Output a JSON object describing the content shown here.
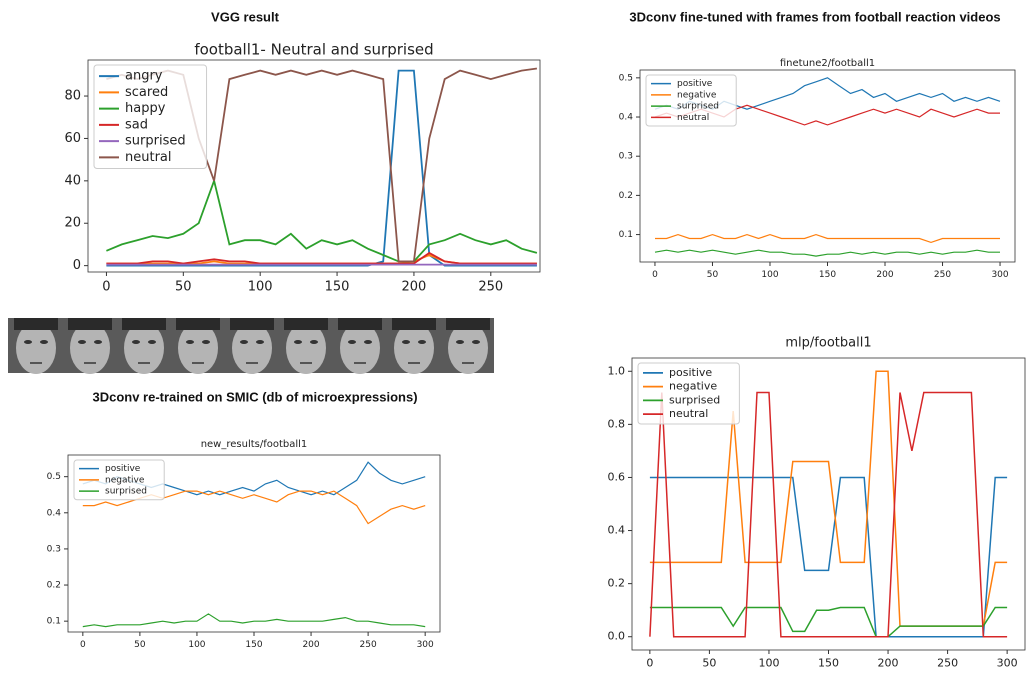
{
  "headings": [
    "VGG result",
    "3Dconv fine-tuned with frames from football reaction videos",
    "3Dconv re-trained on SMIC (db of microexpressions)"
  ],
  "chart_data": [
    {
      "type": "line",
      "title": "football1- Neutral and surprised",
      "x": [
        0,
        10,
        20,
        30,
        40,
        50,
        60,
        70,
        80,
        90,
        100,
        110,
        120,
        130,
        140,
        150,
        160,
        170,
        180,
        190,
        200,
        210,
        220,
        230,
        240,
        250,
        260,
        270,
        280
      ],
      "xlim": [
        -12,
        282
      ],
      "xticks": [
        0,
        50,
        100,
        150,
        200,
        250
      ],
      "ylim": [
        -3,
        97
      ],
      "yticks": [
        0,
        20,
        40,
        60,
        80
      ],
      "legend": "upper left",
      "series": [
        {
          "name": "angry",
          "color": "#1f77b4",
          "values": [
            0,
            0,
            0,
            0,
            0,
            0,
            0,
            0,
            0,
            0,
            0,
            0,
            0,
            0,
            0,
            0,
            0,
            0,
            2,
            92,
            92,
            5,
            0,
            0,
            0,
            0,
            0,
            0,
            0
          ]
        },
        {
          "name": "scared",
          "color": "#ff7f0e",
          "values": [
            1,
            1,
            1,
            1,
            1,
            1,
            1,
            2,
            1,
            1,
            1,
            1,
            1,
            1,
            1,
            1,
            1,
            1,
            1,
            1,
            2,
            5,
            2,
            1,
            1,
            1,
            1,
            1,
            1
          ]
        },
        {
          "name": "happy",
          "color": "#2ca02c",
          "values": [
            7,
            10,
            12,
            14,
            13,
            15,
            20,
            40,
            10,
            12,
            12,
            10,
            15,
            8,
            12,
            10,
            12,
            8,
            5,
            2,
            2,
            10,
            12,
            15,
            12,
            10,
            12,
            8,
            6
          ]
        },
        {
          "name": "sad",
          "color": "#d62728",
          "values": [
            1,
            1,
            1,
            2,
            2,
            1,
            2,
            3,
            2,
            2,
            1,
            1,
            1,
            1,
            1,
            1,
            1,
            1,
            1,
            1,
            1,
            6,
            2,
            1,
            1,
            1,
            1,
            1,
            1
          ]
        },
        {
          "name": "surprised",
          "color": "#9467bd",
          "values": [
            0.5,
            0.5,
            0.5,
            0.5,
            0.5,
            0.5,
            0.5,
            0.5,
            0.5,
            0.5,
            0.5,
            0.5,
            0.5,
            0.5,
            0.5,
            0.5,
            0.5,
            0.5,
            0.5,
            0.5,
            0.5,
            0.5,
            0.5,
            0.5,
            0.5,
            0.5,
            0.5,
            0.5,
            0.5
          ]
        },
        {
          "name": "neutral",
          "color": "#8c564b",
          "values": [
            88,
            90,
            88,
            90,
            92,
            90,
            60,
            40,
            88,
            90,
            92,
            90,
            92,
            90,
            92,
            90,
            92,
            90,
            88,
            2,
            2,
            60,
            88,
            92,
            90,
            88,
            90,
            92,
            93
          ]
        }
      ]
    },
    {
      "type": "line",
      "title": "finetune2/football1",
      "x": [
        0,
        10,
        20,
        30,
        40,
        50,
        60,
        70,
        80,
        90,
        100,
        110,
        120,
        130,
        140,
        150,
        160,
        170,
        180,
        190,
        200,
        210,
        220,
        230,
        240,
        250,
        260,
        270,
        280,
        290,
        300
      ],
      "xlim": [
        -13,
        313
      ],
      "xticks": [
        0,
        50,
        100,
        150,
        200,
        250,
        300
      ],
      "ylim": [
        0.03,
        0.52
      ],
      "yticks": [
        0.1,
        0.2,
        0.3,
        0.4,
        0.5
      ],
      "legend": "upper left",
      "series": [
        {
          "name": "positive",
          "color": "#1f77b4",
          "values": [
            0.42,
            0.43,
            0.42,
            0.44,
            0.43,
            0.42,
            0.44,
            0.43,
            0.42,
            0.43,
            0.44,
            0.45,
            0.46,
            0.48,
            0.49,
            0.5,
            0.48,
            0.46,
            0.47,
            0.45,
            0.46,
            0.44,
            0.45,
            0.46,
            0.45,
            0.46,
            0.44,
            0.45,
            0.44,
            0.45,
            0.44
          ]
        },
        {
          "name": "negative",
          "color": "#ff7f0e",
          "values": [
            0.09,
            0.09,
            0.1,
            0.09,
            0.09,
            0.1,
            0.09,
            0.09,
            0.1,
            0.09,
            0.1,
            0.09,
            0.09,
            0.09,
            0.1,
            0.09,
            0.09,
            0.09,
            0.09,
            0.09,
            0.09,
            0.09,
            0.09,
            0.09,
            0.08,
            0.09,
            0.09,
            0.09,
            0.09,
            0.09,
            0.09
          ]
        },
        {
          "name": "surprised",
          "color": "#2ca02c",
          "values": [
            0.055,
            0.06,
            0.055,
            0.06,
            0.055,
            0.06,
            0.055,
            0.05,
            0.055,
            0.06,
            0.055,
            0.055,
            0.05,
            0.05,
            0.045,
            0.05,
            0.05,
            0.055,
            0.05,
            0.055,
            0.05,
            0.055,
            0.055,
            0.05,
            0.055,
            0.05,
            0.055,
            0.055,
            0.06,
            0.055,
            0.055
          ]
        },
        {
          "name": "neutral",
          "color": "#d62728",
          "values": [
            0.4,
            0.41,
            0.4,
            0.41,
            0.42,
            0.41,
            0.4,
            0.42,
            0.43,
            0.42,
            0.41,
            0.4,
            0.39,
            0.38,
            0.39,
            0.38,
            0.39,
            0.4,
            0.41,
            0.42,
            0.41,
            0.42,
            0.41,
            0.4,
            0.42,
            0.41,
            0.4,
            0.41,
            0.42,
            0.41,
            0.41
          ]
        }
      ]
    },
    {
      "type": "line",
      "title": "new_results/football1",
      "x": [
        0,
        10,
        20,
        30,
        40,
        50,
        60,
        70,
        80,
        90,
        100,
        110,
        120,
        130,
        140,
        150,
        160,
        170,
        180,
        190,
        200,
        210,
        220,
        230,
        240,
        250,
        260,
        270,
        280,
        290,
        300
      ],
      "xlim": [
        -13,
        313
      ],
      "xticks": [
        0,
        50,
        100,
        150,
        200,
        250,
        300
      ],
      "ylim": [
        0.07,
        0.56
      ],
      "yticks": [
        0.1,
        0.2,
        0.3,
        0.4,
        0.5
      ],
      "legend": "upper left",
      "series": [
        {
          "name": "positive",
          "color": "#1f77b4",
          "values": [
            0.48,
            0.49,
            0.48,
            0.5,
            0.49,
            0.48,
            0.47,
            0.48,
            0.47,
            0.46,
            0.45,
            0.46,
            0.45,
            0.46,
            0.47,
            0.46,
            0.48,
            0.49,
            0.47,
            0.46,
            0.45,
            0.46,
            0.45,
            0.47,
            0.49,
            0.54,
            0.51,
            0.49,
            0.48,
            0.49,
            0.5
          ]
        },
        {
          "name": "negative",
          "color": "#ff7f0e",
          "values": [
            0.42,
            0.42,
            0.43,
            0.42,
            0.43,
            0.44,
            0.45,
            0.44,
            0.45,
            0.46,
            0.46,
            0.45,
            0.46,
            0.45,
            0.44,
            0.45,
            0.44,
            0.43,
            0.45,
            0.46,
            0.46,
            0.45,
            0.46,
            0.44,
            0.42,
            0.37,
            0.39,
            0.41,
            0.42,
            0.41,
            0.42
          ]
        },
        {
          "name": "surprised",
          "color": "#2ca02c",
          "values": [
            0.085,
            0.09,
            0.085,
            0.09,
            0.09,
            0.09,
            0.095,
            0.1,
            0.095,
            0.1,
            0.1,
            0.12,
            0.1,
            0.1,
            0.095,
            0.1,
            0.1,
            0.105,
            0.1,
            0.1,
            0.1,
            0.1,
            0.105,
            0.11,
            0.1,
            0.1,
            0.095,
            0.09,
            0.09,
            0.09,
            0.085
          ]
        }
      ]
    },
    {
      "type": "line",
      "title": "mlp/football1",
      "x": [
        0,
        10,
        20,
        30,
        40,
        50,
        60,
        70,
        80,
        90,
        100,
        110,
        120,
        130,
        140,
        150,
        160,
        170,
        180,
        190,
        200,
        210,
        220,
        230,
        240,
        250,
        260,
        270,
        280,
        290,
        300
      ],
      "xlim": [
        -15,
        315
      ],
      "xticks": [
        0,
        50,
        100,
        150,
        200,
        250,
        300
      ],
      "ylim": [
        -0.05,
        1.05
      ],
      "yticks": [
        {
          "value": 0,
          "label": "0.0"
        },
        0.2,
        0.4,
        0.6,
        0.8,
        {
          "value": 1,
          "label": "1.0"
        }
      ],
      "legend": "upper left",
      "series": [
        {
          "name": "positive",
          "color": "#1f77b4",
          "values": [
            0.6,
            0.6,
            0.6,
            0.6,
            0.6,
            0.6,
            0.6,
            0.6,
            0.6,
            0.6,
            0.6,
            0.6,
            0.6,
            0.25,
            0.25,
            0.25,
            0.6,
            0.6,
            0.6,
            0,
            0,
            0,
            0,
            0,
            0,
            0,
            0,
            0,
            0,
            0.6,
            0.6
          ]
        },
        {
          "name": "negative",
          "color": "#ff7f0e",
          "values": [
            0.28,
            0.28,
            0.28,
            0.28,
            0.28,
            0.28,
            0.28,
            0.85,
            0.28,
            0.28,
            0.28,
            0.28,
            0.66,
            0.66,
            0.66,
            0.66,
            0.28,
            0.28,
            0.28,
            1.0,
            1.0,
            0.04,
            0.04,
            0.04,
            0.04,
            0.04,
            0.04,
            0.04,
            0.04,
            0.28,
            0.28
          ]
        },
        {
          "name": "surprised",
          "color": "#2ca02c",
          "values": [
            0.11,
            0.11,
            0.11,
            0.11,
            0.11,
            0.11,
            0.11,
            0.04,
            0.11,
            0.11,
            0.11,
            0.11,
            0.02,
            0.02,
            0.1,
            0.1,
            0.11,
            0.11,
            0.11,
            0,
            0,
            0.04,
            0.04,
            0.04,
            0.04,
            0.04,
            0.04,
            0.04,
            0.04,
            0.11,
            0.11
          ]
        },
        {
          "name": "neutral",
          "color": "#d62728",
          "values": [
            0,
            0.92,
            0,
            0,
            0,
            0,
            0,
            0,
            0,
            0.92,
            0.92,
            0,
            0,
            0,
            0,
            0,
            0,
            0,
            0,
            0,
            0,
            0.92,
            0.7,
            0.92,
            0.92,
            0.92,
            0.92,
            0.92,
            0,
            0,
            0
          ]
        }
      ]
    }
  ]
}
